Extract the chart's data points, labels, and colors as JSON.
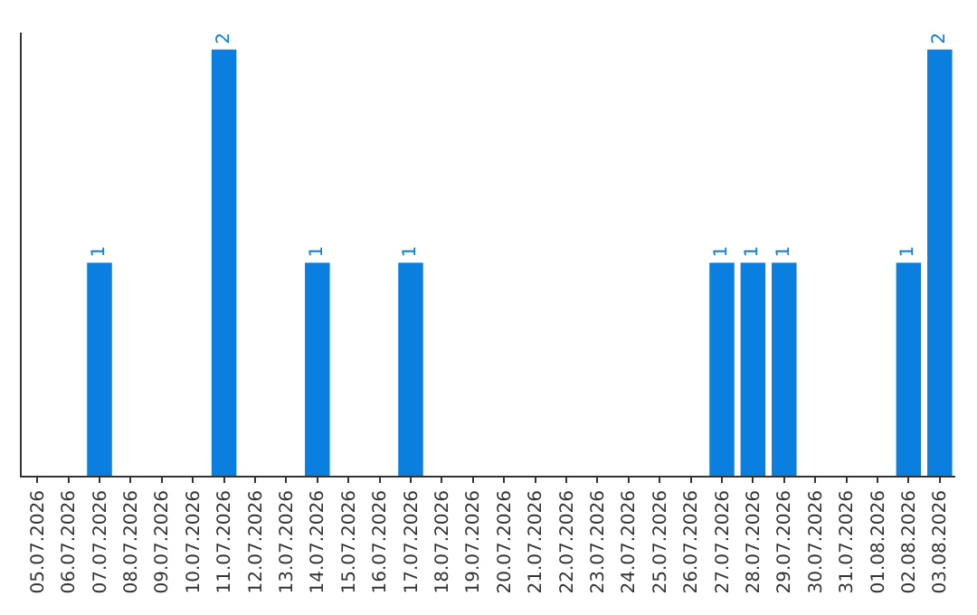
{
  "chart_data": {
    "type": "bar",
    "categories": [
      "05.07.2026",
      "06.07.2026",
      "07.07.2026",
      "08.07.2026",
      "09.07.2026",
      "10.07.2026",
      "11.07.2026",
      "12.07.2026",
      "13.07.2026",
      "14.07.2026",
      "15.07.2026",
      "16.07.2026",
      "17.07.2026",
      "18.07.2026",
      "19.07.2026",
      "20.07.2026",
      "21.07.2026",
      "22.07.2026",
      "23.07.2026",
      "24.07.2026",
      "25.07.2026",
      "26.07.2026",
      "27.07.2026",
      "28.07.2026",
      "29.07.2026",
      "30.07.2026",
      "31.07.2026",
      "01.08.2026",
      "02.08.2026",
      "03.08.2026"
    ],
    "values": [
      0,
      0,
      1,
      0,
      0,
      0,
      2,
      0,
      0,
      1,
      0,
      0,
      1,
      0,
      0,
      0,
      0,
      0,
      0,
      0,
      0,
      0,
      1,
      1,
      1,
      0,
      0,
      0,
      1,
      2
    ],
    "value_labels": [
      null,
      null,
      "1",
      null,
      null,
      null,
      "2",
      null,
      null,
      "1",
      null,
      null,
      "1",
      null,
      null,
      null,
      null,
      null,
      null,
      null,
      null,
      null,
      "1",
      "1",
      "1",
      null,
      null,
      null,
      "1",
      "2"
    ],
    "color": "#0a7fe0",
    "tick_labels": "x"
  }
}
